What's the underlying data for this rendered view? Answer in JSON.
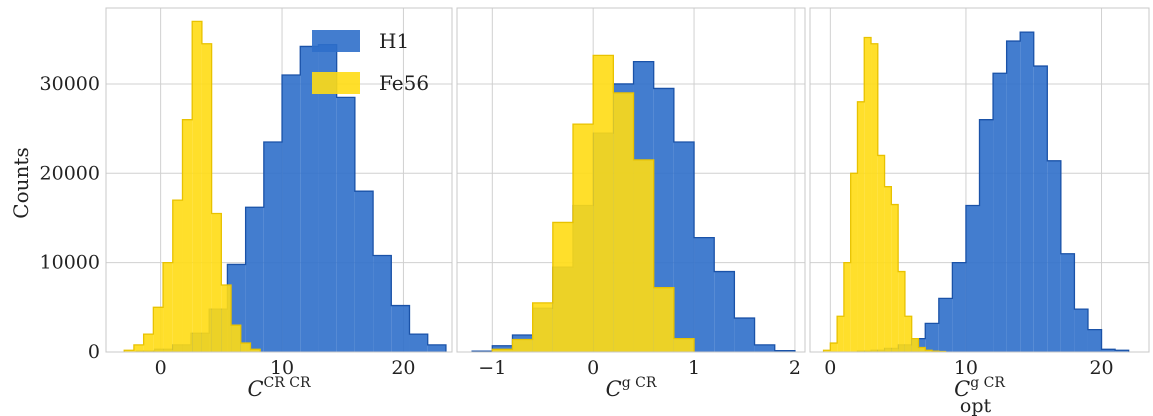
{
  "colors": {
    "h1": "#2f6fca",
    "h1_edge": "#1a52a8",
    "fe56": "#ffdc14",
    "fe56_edge": "#e8c200"
  },
  "chart_data": [
    {
      "type": "bar",
      "xlabel_main": "C",
      "xlabel_sup": "CR CR",
      "xlabel_sub": "",
      "ylabel": "Counts",
      "xlim": [
        -4.5,
        24.0
      ],
      "ylim": [
        0,
        38500
      ],
      "xticks": [
        0,
        10,
        20
      ],
      "xtick_labels": [
        "0",
        "10",
        "20"
      ],
      "yticks": [
        0,
        10000,
        20000,
        30000
      ],
      "ytick_labels": [
        "0",
        "10000",
        "20000",
        "30000"
      ],
      "legend": {
        "position": "top-right",
        "entries": [
          "H1",
          "Fe56"
        ]
      },
      "series": [
        {
          "name": "H1",
          "color_key": "h1",
          "edges": [
            -2.0,
            -0.5,
            1.0,
            2.5,
            4.0,
            5.5,
            7.0,
            8.5,
            10.0,
            11.5,
            13.0,
            14.5,
            16.0,
            17.5,
            19.0,
            20.5,
            22.0,
            23.5
          ],
          "values": [
            100,
            300,
            800,
            2100,
            4800,
            9800,
            16200,
            23500,
            31000,
            34200,
            34400,
            28500,
            18000,
            10800,
            5200,
            2000,
            800
          ]
        },
        {
          "name": "Fe56",
          "color_key": "fe56",
          "edges": [
            -3.0,
            -2.2,
            -1.4,
            -0.6,
            0.2,
            1.0,
            1.8,
            2.6,
            3.4,
            4.2,
            5.0,
            5.8,
            6.6,
            7.4,
            8.2
          ],
          "values": [
            200,
            800,
            2000,
            5000,
            10000,
            17000,
            26000,
            37000,
            34500,
            15500,
            7500,
            3000,
            1000,
            300
          ]
        }
      ]
    },
    {
      "type": "bar",
      "xlabel_main": "C",
      "xlabel_sup": "g CR",
      "xlabel_sub": "",
      "ylabel": "",
      "xlim": [
        -1.35,
        2.1
      ],
      "ylim": [
        0,
        38500
      ],
      "xticks": [
        -1,
        0,
        1,
        2
      ],
      "xtick_labels": [
        "−1",
        "0",
        "1",
        "2"
      ],
      "yticks": [
        0,
        10000,
        20000,
        30000
      ],
      "ytick_labels": [],
      "series": [
        {
          "name": "H1",
          "color_key": "h1",
          "edges": [
            -1.2,
            -1.0,
            -0.8,
            -0.6,
            -0.4,
            -0.2,
            0.0,
            0.2,
            0.4,
            0.6,
            0.8,
            1.0,
            1.2,
            1.4,
            1.6,
            1.8,
            2.0
          ],
          "values": [
            100,
            700,
            1900,
            4900,
            9500,
            16400,
            24500,
            30000,
            32500,
            29500,
            23500,
            12800,
            9000,
            3800,
            800,
            150
          ]
        },
        {
          "name": "Fe56",
          "color_key": "fe56",
          "edges": [
            -1.0,
            -0.8,
            -0.6,
            -0.4,
            -0.2,
            0.0,
            0.2,
            0.4,
            0.6,
            0.8,
            1.0
          ],
          "values": [
            300,
            1400,
            5500,
            14500,
            25500,
            33200,
            29000,
            21500,
            7200,
            1500
          ]
        }
      ]
    },
    {
      "type": "bar",
      "xlabel_main": "C",
      "xlabel_sup": "g CR",
      "xlabel_sub": "opt",
      "ylabel": "",
      "xlim": [
        -1.5,
        23.5
      ],
      "ylim": [
        0,
        38500
      ],
      "xticks": [
        0,
        10,
        20
      ],
      "xtick_labels": [
        "0",
        "10",
        "20"
      ],
      "yticks": [
        0,
        10000,
        20000,
        30000
      ],
      "ytick_labels": [],
      "series": [
        {
          "name": "H1",
          "color_key": "h1",
          "edges": [
            2.0,
            3.0,
            4.0,
            5.0,
            6.0,
            7.0,
            8.0,
            9.0,
            10.0,
            11.0,
            12.0,
            13.0,
            14.0,
            15.0,
            16.0,
            17.0,
            18.0,
            19.0,
            20.0,
            21.0,
            22.0
          ],
          "values": [
            100,
            200,
            400,
            800,
            1500,
            3200,
            6000,
            10000,
            16400,
            26000,
            31200,
            34800,
            35800,
            32000,
            21400,
            11000,
            4800,
            2500,
            300,
            200
          ]
        },
        {
          "name": "Fe56",
          "color_key": "fe56",
          "edges": [
            -0.5,
            0.0,
            0.5,
            1.0,
            1.5,
            2.0,
            2.5,
            3.0,
            3.5,
            4.0,
            4.5,
            5.0,
            5.5,
            6.0,
            6.5,
            7.0,
            7.5,
            8.0,
            8.5
          ],
          "values": [
            200,
            1000,
            4000,
            10000,
            20000,
            28000,
            35200,
            34500,
            22000,
            18500,
            16500,
            9000,
            4000,
            1500,
            500,
            200,
            100,
            50
          ]
        }
      ]
    }
  ]
}
